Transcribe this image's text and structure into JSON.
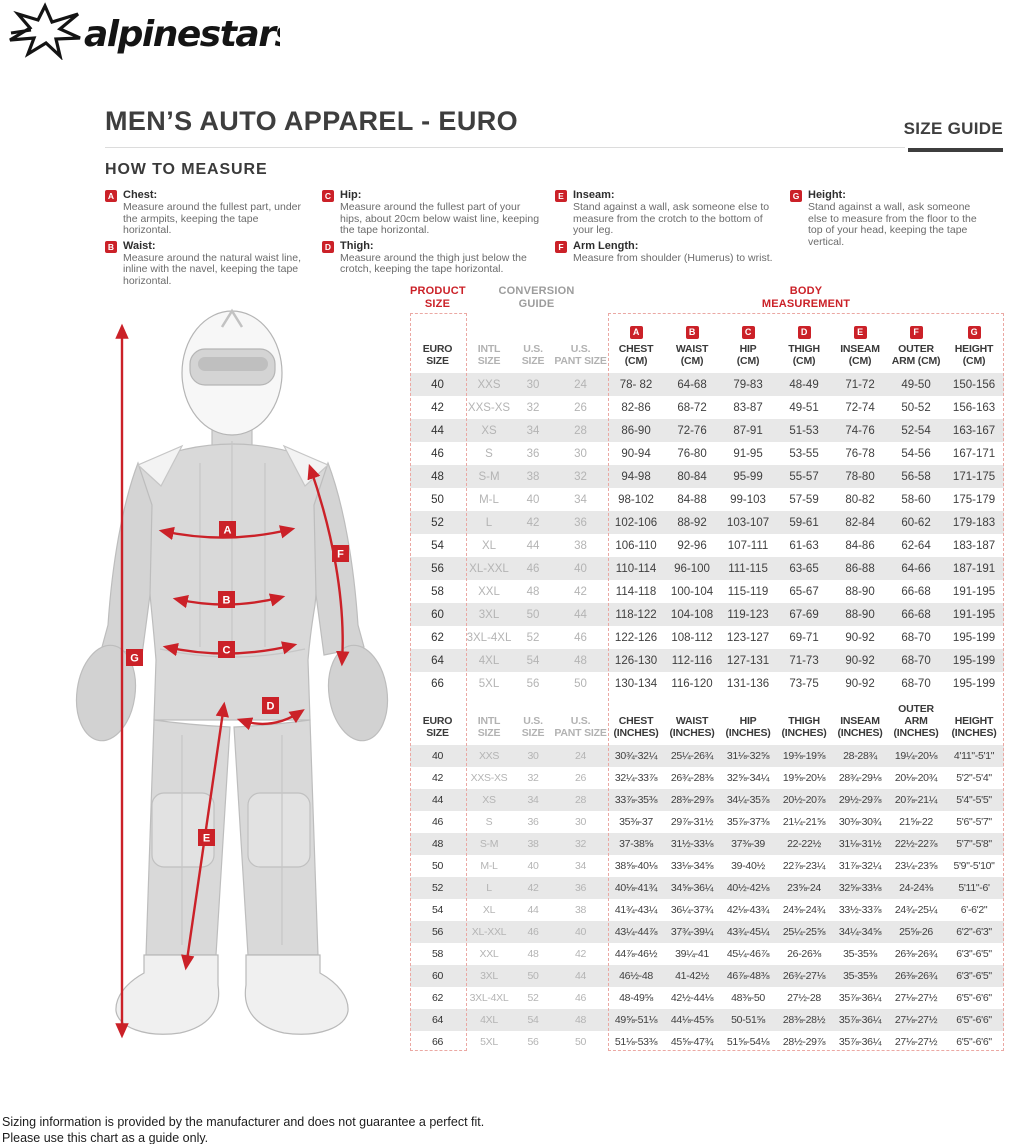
{
  "brand": {
    "logo_text": "alpinestars"
  },
  "header": {
    "title": "MEN’S AUTO APPAREL - EURO",
    "size_guide_label": "SIZE GUIDE"
  },
  "how_to_measure": {
    "heading": "HOW TO MEASURE",
    "items": [
      {
        "letter": "A",
        "label": "Chest:",
        "description": "Measure around the fullest part, under the armpits, keeping the tape horizontal."
      },
      {
        "letter": "B",
        "label": "Waist:",
        "description": "Measure around the natural waist line, inline with the navel, keeping the tape horizontal."
      },
      {
        "letter": "C",
        "label": "Hip:",
        "description": "Measure around the fullest part of your hips, about 20cm below waist line, keeping the tape horizontal."
      },
      {
        "letter": "D",
        "label": "Thigh:",
        "description": "Measure around the thigh just below the crotch, keeping the tape horizontal."
      },
      {
        "letter": "E",
        "label": "Inseam:",
        "description": "Stand against a wall, ask someone else to measure from the crotch to the bottom of your leg."
      },
      {
        "letter": "F",
        "label": "Arm Length:",
        "description": "Measure from shoulder (Humerus) to wrist."
      },
      {
        "letter": "G",
        "label": "Height:",
        "description": "Stand against a wall, ask someone else to measure from the floor to the top of your head, keeping the tape vertical."
      }
    ]
  },
  "figure": {
    "labels": [
      "A",
      "B",
      "C",
      "D",
      "E",
      "F",
      "G"
    ]
  },
  "sizing_table": {
    "group_headers": {
      "product_size": "PRODUCT\nSIZE",
      "conversion_guide": "CONVERSION\nGUIDE",
      "body_measurement": "BODY\nMEASUREMENT"
    },
    "cm_columns": [
      {
        "badge": "",
        "label": "EURO\nSIZE"
      },
      {
        "badge": "",
        "label": "INTL\nSIZE"
      },
      {
        "badge": "",
        "label": "U.S.\nSIZE"
      },
      {
        "badge": "",
        "label": "U.S.\nPANT SIZE"
      },
      {
        "badge": "A",
        "label": "CHEST\n(CM)"
      },
      {
        "badge": "B",
        "label": "WAIST\n(CM)"
      },
      {
        "badge": "C",
        "label": "HIP\n(CM)"
      },
      {
        "badge": "D",
        "label": "THIGH\n(CM)"
      },
      {
        "badge": "E",
        "label": "INSEAM\n(CM)"
      },
      {
        "badge": "F",
        "label": "OUTER\nARM (CM)"
      },
      {
        "badge": "G",
        "label": "HEIGHT\n(CM)"
      }
    ],
    "inch_columns": [
      {
        "label": "EURO\nSIZE"
      },
      {
        "label": "INTL\nSIZE"
      },
      {
        "label": "U.S.\nSIZE"
      },
      {
        "label": "U.S.\nPANT SIZE"
      },
      {
        "label": "CHEST\n(INCHES)"
      },
      {
        "label": "WAIST\n(INCHES)"
      },
      {
        "label": "HIP\n(INCHES)"
      },
      {
        "label": "THIGH\n(INCHES)"
      },
      {
        "label": "INSEAM\n(INCHES)"
      },
      {
        "label": "OUTER ARM\n(INCHES)"
      },
      {
        "label": "HEIGHT\n(INCHES)"
      }
    ],
    "cm_rows": [
      [
        "40",
        "XXS",
        "30",
        "24",
        "78- 82",
        "64-68",
        "79-83",
        "48-49",
        "71-72",
        "49-50",
        "150-156"
      ],
      [
        "42",
        "XXS-XS",
        "32",
        "26",
        "82-86",
        "68-72",
        "83-87",
        "49-51",
        "72-74",
        "50-52",
        "156-163"
      ],
      [
        "44",
        "XS",
        "34",
        "28",
        "86-90",
        "72-76",
        "87-91",
        "51-53",
        "74-76",
        "52-54",
        "163-167"
      ],
      [
        "46",
        "S",
        "36",
        "30",
        "90-94",
        "76-80",
        "91-95",
        "53-55",
        "76-78",
        "54-56",
        "167-171"
      ],
      [
        "48",
        "S-M",
        "38",
        "32",
        "94-98",
        "80-84",
        "95-99",
        "55-57",
        "78-80",
        "56-58",
        "171-175"
      ],
      [
        "50",
        "M-L",
        "40",
        "34",
        "98-102",
        "84-88",
        "99-103",
        "57-59",
        "80-82",
        "58-60",
        "175-179"
      ],
      [
        "52",
        "L",
        "42",
        "36",
        "102-106",
        "88-92",
        "103-107",
        "59-61",
        "82-84",
        "60-62",
        "179-183"
      ],
      [
        "54",
        "XL",
        "44",
        "38",
        "106-110",
        "92-96",
        "107-111",
        "61-63",
        "84-86",
        "62-64",
        "183-187"
      ],
      [
        "56",
        "XL-XXL",
        "46",
        "40",
        "110-114",
        "96-100",
        "111-115",
        "63-65",
        "86-88",
        "64-66",
        "187-191"
      ],
      [
        "58",
        "XXL",
        "48",
        "42",
        "114-118",
        "100-104",
        "115-119",
        "65-67",
        "88-90",
        "66-68",
        "191-195"
      ],
      [
        "60",
        "3XL",
        "50",
        "44",
        "118-122",
        "104-108",
        "119-123",
        "67-69",
        "88-90",
        "66-68",
        "191-195"
      ],
      [
        "62",
        "3XL-4XL",
        "52",
        "46",
        "122-126",
        "108-112",
        "123-127",
        "69-71",
        "90-92",
        "68-70",
        "195-199"
      ],
      [
        "64",
        "4XL",
        "54",
        "48",
        "126-130",
        "112-116",
        "127-131",
        "71-73",
        "90-92",
        "68-70",
        "195-199"
      ],
      [
        "66",
        "5XL",
        "56",
        "50",
        "130-134",
        "116-120",
        "131-136",
        "73-75",
        "90-92",
        "68-70",
        "195-199"
      ]
    ],
    "inch_rows": [
      [
        "40",
        "XXS",
        "30",
        "24",
        "30¾-32¼",
        "25¼-26¾",
        "31⅛-32⅝",
        "19⅜-19⅝",
        "28-28¾",
        "19¼-20⅛",
        "4'11\"-5'1\""
      ],
      [
        "42",
        "XXS-XS",
        "32",
        "26",
        "32¼-33⅞",
        "26¾-28⅜",
        "32⅝-34¼",
        "19⅝-20⅛",
        "28¾-29⅛",
        "20⅛-20¾",
        "5'2\"-5'4\""
      ],
      [
        "44",
        "XS",
        "34",
        "28",
        "33⅞-35⅜",
        "28⅜-29⅞",
        "34¼-35⅞",
        "20½-20⅞",
        "29½-29⅞",
        "20⅞-21¼",
        "5'4\"-5'5\""
      ],
      [
        "46",
        "S",
        "36",
        "30",
        "35⅜-37",
        "29⅞-31½",
        "35⅞-37⅜",
        "21¼-21⅝",
        "30⅜-30¾",
        "21⅝-22",
        "5'6\"-5'7\""
      ],
      [
        "48",
        "S-M",
        "38",
        "32",
        "37-38⅝",
        "31½-33⅛",
        "37⅜-39",
        "22-22½",
        "31⅛-31½",
        "22½-22⅞",
        "5'7\"-5'8\""
      ],
      [
        "50",
        "M-L",
        "40",
        "34",
        "38⅝-40⅛",
        "33⅛-34⅝",
        "39-40½",
        "22⅞-23¼",
        "31⅞-32¼",
        "23¼-23⅝",
        "5'9\"-5'10\""
      ],
      [
        "52",
        "L",
        "42",
        "36",
        "40⅛-41¾",
        "34⅝-36¼",
        "40½-42⅛",
        "23⅝-24",
        "32⅝-33⅛",
        "24-24⅜",
        "5'11\"-6'"
      ],
      [
        "54",
        "XL",
        "44",
        "38",
        "41¾-43¼",
        "36¼-37¾",
        "42⅛-43¾",
        "24⅜-24¾",
        "33½-33⅞",
        "24¾-25¼",
        "6'-6'2\""
      ],
      [
        "56",
        "XL-XXL",
        "46",
        "40",
        "43¼-44⅞",
        "37¾-39¼",
        "43¾-45¼",
        "25¼-25⅝",
        "34¼-34⅝",
        "25⅝-26",
        "6'2\"-6'3\""
      ],
      [
        "58",
        "XXL",
        "48",
        "42",
        "44⅞-46½",
        "39¼-41",
        "45¼-46⅞",
        "26-26⅜",
        "35-35⅜",
        "26⅜-26¾",
        "6'3\"-6'5\""
      ],
      [
        "60",
        "3XL",
        "50",
        "44",
        "46½-48",
        "41-42½",
        "46⅞-48⅜",
        "26¾-27⅛",
        "35-35⅜",
        "26⅜-26¾",
        "6'3\"-6'5\""
      ],
      [
        "62",
        "3XL-4XL",
        "52",
        "46",
        "48-49⅝",
        "42½-44⅛",
        "48⅜-50",
        "27½-28",
        "35⅞-36¼",
        "27⅛-27½",
        "6'5\"-6'6\""
      ],
      [
        "64",
        "4XL",
        "54",
        "48",
        "49⅝-51⅛",
        "44⅛-45⅝",
        "50-51⅝",
        "28⅜-28½",
        "35⅞-36¼",
        "27⅛-27½",
        "6'5\"-6'6\""
      ],
      [
        "66",
        "5XL",
        "56",
        "50",
        "51⅛-53⅜",
        "45⅝-47¾",
        "51⅝-54⅛",
        "28½-29⅞",
        "35⅞-36¼",
        "27⅛-27½",
        "6'5\"-6'6\""
      ]
    ]
  },
  "footer": {
    "line1": "Sizing information is provided by the manufacturer and does not guarantee a perfect fit.",
    "line2": "Please use this chart as a guide only."
  },
  "colors": {
    "accent_red": "#cb2128",
    "row_alt": "#e8e8e8",
    "muted_gray": "#b2b2b2"
  }
}
